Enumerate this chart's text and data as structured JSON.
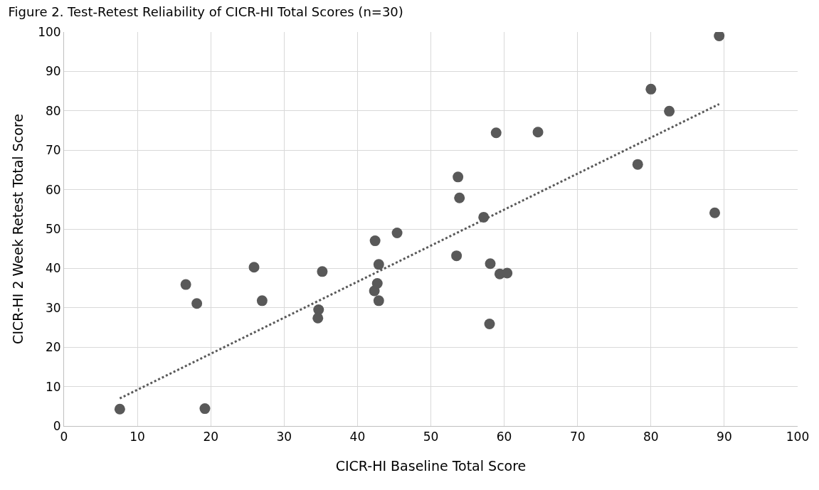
{
  "chart_data": {
    "type": "scatter",
    "title": "Figure 2. Test-Retest Reliability of CICR-HI Total Scores (n=30)",
    "xlabel": "CICR-HI Baseline Total Score",
    "ylabel": "CICR-HI 2 Week Retest Total Score",
    "x": [
      7.6,
      16.6,
      18.1,
      19.2,
      25.9,
      27.0,
      34.7,
      34.6,
      35.2,
      42.4,
      42.3,
      42.7,
      42.9,
      42.9,
      45.4,
      53.5,
      53.7,
      53.9,
      57.2,
      58.9,
      58.1,
      58.0,
      59.4,
      60.4,
      64.6,
      78.2,
      80.0,
      82.5,
      88.7,
      89.3
    ],
    "series": [
      {
        "color": "#595959",
        "marker": "circle",
        "values": [
          4.3,
          35.9,
          31.1,
          4.4,
          40.3,
          31.8,
          29.5,
          27.4,
          39.2,
          47.0,
          34.3,
          36.2,
          41.0,
          31.8,
          49.0,
          43.2,
          63.2,
          57.9,
          53.0,
          74.4,
          41.2,
          25.9,
          38.6,
          38.8,
          74.6,
          66.4,
          85.5,
          79.9,
          54.1,
          99.0
        ]
      },
      {
        "type": "line",
        "color": "#595959",
        "line_style": "dotted",
        "marker": "none",
        "x": [
          7.6,
          89.3
        ],
        "values": [
          7.0,
          81.7
        ]
      }
    ],
    "xlim": [
      0,
      100
    ],
    "xticks": [
      0,
      10,
      20,
      30,
      40,
      50,
      60,
      70,
      80,
      90,
      100
    ],
    "ylim": [
      0,
      100
    ],
    "yticks": [
      0,
      10,
      20,
      30,
      40,
      50,
      60,
      70,
      80,
      90,
      100
    ],
    "grid": true
  }
}
